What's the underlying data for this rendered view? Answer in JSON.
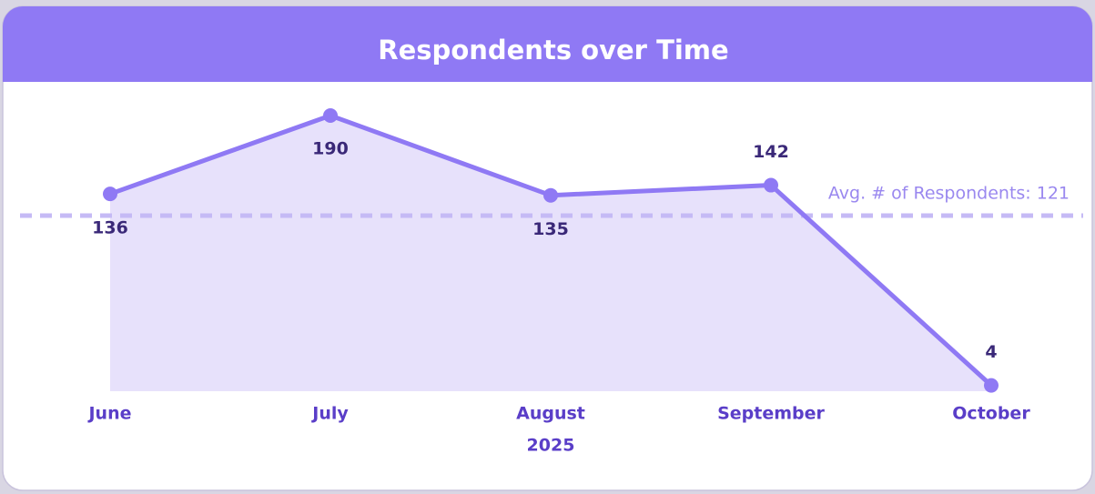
{
  "chart_data": {
    "type": "line",
    "title": "Respondents over Time",
    "categories": [
      "June",
      "July",
      "August",
      "September",
      "October"
    ],
    "x_annotation": "2025",
    "values": [
      136,
      190,
      135,
      142,
      4
    ],
    "color": "#8f79f4",
    "fill_color": "#e7e1fb",
    "average": {
      "value": 121,
      "label": "Avg. # of Respondents: 121"
    }
  }
}
